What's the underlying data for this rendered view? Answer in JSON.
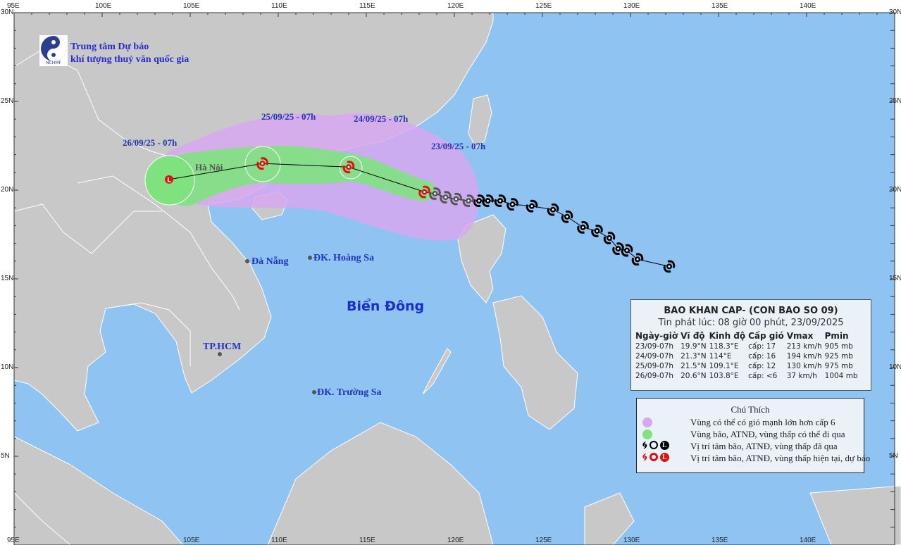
{
  "header": {
    "logo_caption": "NCHMF",
    "org_line1": "Trung tâm Dự báo",
    "org_line2": "khí tượng thuỷ văn quốc gia"
  },
  "axes": {
    "lon_ticks": [
      "95E",
      "100E",
      "105E",
      "110E",
      "115E",
      "120E",
      "125E",
      "130E",
      "135E",
      "140E"
    ],
    "lat_ticks_left": [
      "30N",
      "25N",
      "20N",
      "15N",
      "10N",
      "5N"
    ],
    "lat_ticks_right": [
      "30N",
      "25N",
      "20N",
      "15N",
      "10N",
      "5N"
    ],
    "bottom_lon_ticks": [
      "95E",
      "105E",
      "110E",
      "115E",
      "120E",
      "125E",
      "130E",
      "135E",
      "140E"
    ]
  },
  "places": {
    "hanoi": "Hà Nội",
    "danang": "Đà Nẵng",
    "hoangsa": "ĐK. Hoàng Sa",
    "bien_dong": "Biển Đông",
    "tphcm": "TP.HCM",
    "truongsa": "ĐK. Trường Sa"
  },
  "forecast_labels": [
    "23/09/25 - 07h",
    "24/09/25 - 07h",
    "25/09/25 - 07h",
    "26/09/25 - 07h"
  ],
  "track": {
    "past_color": "#000000",
    "forecast_color": "#e01010",
    "past_points": [
      [
        132.2,
        15.7
      ],
      [
        130.4,
        16.1
      ],
      [
        129.8,
        16.6
      ],
      [
        129.3,
        16.7
      ],
      [
        128.8,
        17.3
      ],
      [
        128.1,
        17.7
      ],
      [
        127.3,
        17.9
      ],
      [
        126.4,
        18.5
      ],
      [
        125.6,
        18.9
      ],
      [
        124.4,
        19.1
      ],
      [
        123.3,
        19.2
      ],
      [
        122.6,
        19.4
      ],
      [
        121.9,
        19.4
      ],
      [
        121.4,
        19.4
      ],
      [
        120.8,
        19.4
      ],
      [
        120.1,
        19.5
      ],
      [
        119.5,
        19.6
      ],
      [
        118.9,
        19.8
      ]
    ],
    "forecast_points": [
      {
        "lon": 118.3,
        "lat": 19.9,
        "symbol": "storm"
      },
      {
        "lon": 114.0,
        "lat": 21.3,
        "symbol": "storm"
      },
      {
        "lon": 109.1,
        "lat": 21.5,
        "symbol": "storm"
      },
      {
        "lon": 103.8,
        "lat": 20.6,
        "symbol": "L"
      }
    ]
  },
  "colors": {
    "sea": "#8ec3f2",
    "land": "#c8c8c8",
    "strong_wind_zone": "#d7a8f0",
    "storm_path_zone": "#7fe27f"
  },
  "info": {
    "title": "BAO KHAN CAP- (CON BAO SO 09)",
    "issued": "Tin phát lúc: 08 giờ 00 phút, 23/09/2025",
    "columns": [
      "Ngày-giờ",
      "Vĩ độ",
      "Kinh độ",
      "Cấp gió",
      "Vmax",
      "Pmin"
    ],
    "rows": [
      [
        "23/09-07h",
        "19.9°N",
        "118.3°E",
        "cấp: 17",
        "213 km/h",
        "905 mb"
      ],
      [
        "24/09-07h",
        "21.3°N",
        "114°E",
        "cấp: 16",
        "194 km/h",
        "925 mb"
      ],
      [
        "25/09-07h",
        "21.5°N",
        "109.1°E",
        "cấp: 12",
        "130 km/h",
        "975 mb"
      ],
      [
        "26/09-07h",
        "20.6°N",
        "103.8°E",
        "cấp: <6",
        "37 km/h",
        "1004 mb"
      ]
    ]
  },
  "legend": {
    "title": "Chú Thích",
    "items": [
      "Vùng có thể có gió mạnh lớn hơn cấp 6",
      "Vùng bão, ATNĐ, vùng thấp có thể đi qua",
      "Vị trí tâm bão, ATNĐ, vùng thấp đã qua",
      "Vị trí tâm bão, ATNĐ, vùng thấp hiện tại, dự báo"
    ],
    "symbol_L": "L"
  }
}
